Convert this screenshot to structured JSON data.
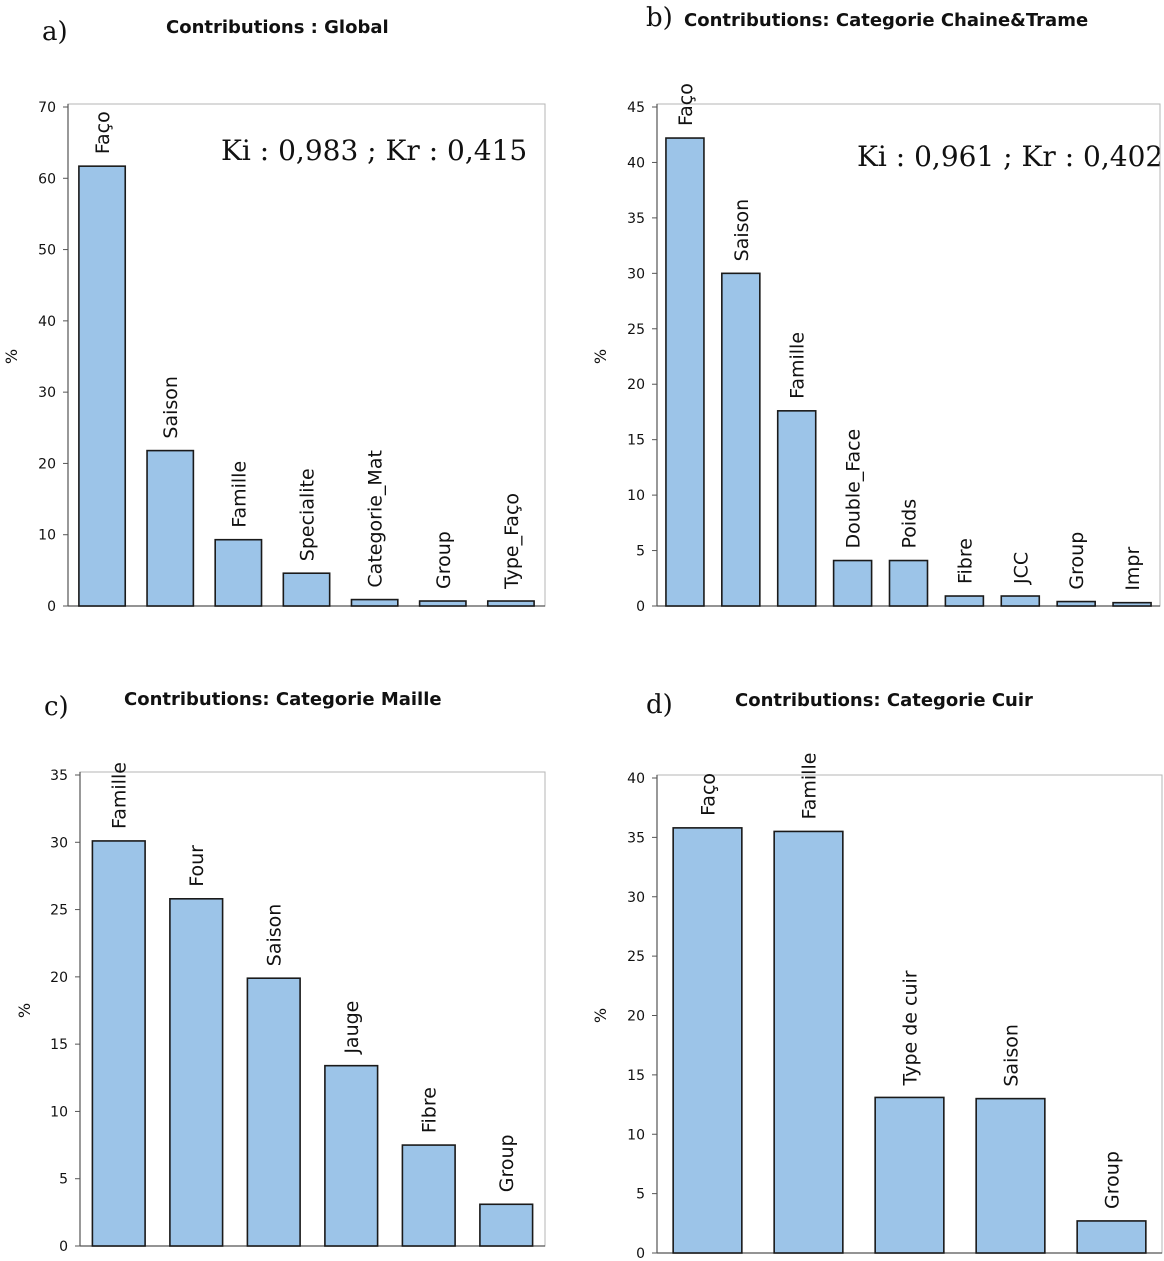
{
  "chart_data": [
    {
      "panel": "a)",
      "type": "bar",
      "title": "Contributions : Global",
      "ylabel": "%",
      "ylim": [
        0,
        70
      ],
      "yticks": [
        0,
        10,
        20,
        30,
        40,
        50,
        60,
        70
      ],
      "annotation": "Ki : 0,983 ; Kr : 0,415",
      "categories": [
        "Façο",
        "Saison",
        "Famille",
        "Specialite",
        "Categorie_Mat",
        "Group",
        "Type_Façο"
      ],
      "values": [
        61.7,
        21.8,
        9.3,
        4.6,
        0.9,
        0.7,
        0.7
      ],
      "grid": false,
      "bar_color": "#9cc4e8"
    },
    {
      "panel": "b)",
      "type": "bar",
      "title": "Contributions: Categorie Chaine&Trame",
      "ylabel": "%",
      "ylim": [
        0,
        45
      ],
      "yticks": [
        0,
        5,
        10,
        15,
        20,
        25,
        30,
        35,
        40,
        45
      ],
      "annotation": "Ki : 0,961 ; Kr : 0,402",
      "categories": [
        "Façο",
        "Saison",
        "Famille",
        "Double_Face",
        "Poids",
        "Fibre",
        "JCC",
        "Group",
        "Impr"
      ],
      "values": [
        42.2,
        30.0,
        17.6,
        4.1,
        4.1,
        0.9,
        0.9,
        0.4,
        0.3
      ],
      "grid": false,
      "bar_color": "#9cc4e8"
    },
    {
      "panel": "c)",
      "type": "bar",
      "title": "Contributions: Categorie Maille",
      "ylabel": "%",
      "ylim": [
        0,
        35
      ],
      "yticks": [
        0,
        5,
        10,
        15,
        20,
        25,
        30,
        35
      ],
      "annotation": "",
      "categories": [
        "Famille",
        "Four",
        "Saison",
        "Jauge",
        "Fibre",
        "Group"
      ],
      "values": [
        30.1,
        25.8,
        19.9,
        13.4,
        7.5,
        3.1
      ],
      "grid": false,
      "bar_color": "#9cc4e8"
    },
    {
      "panel": "d)",
      "type": "bar",
      "title": "Contributions: Categorie Cuir",
      "ylabel": "%",
      "ylim": [
        0,
        40
      ],
      "yticks": [
        0,
        5,
        10,
        15,
        20,
        25,
        30,
        35,
        40
      ],
      "annotation": "",
      "categories": [
        "Façο",
        "Famille",
        "Type de cuir",
        "Saison",
        "Group"
      ],
      "values": [
        35.8,
        35.5,
        13.1,
        13.0,
        2.7
      ],
      "grid": false,
      "bar_color": "#9cc4e8"
    }
  ]
}
